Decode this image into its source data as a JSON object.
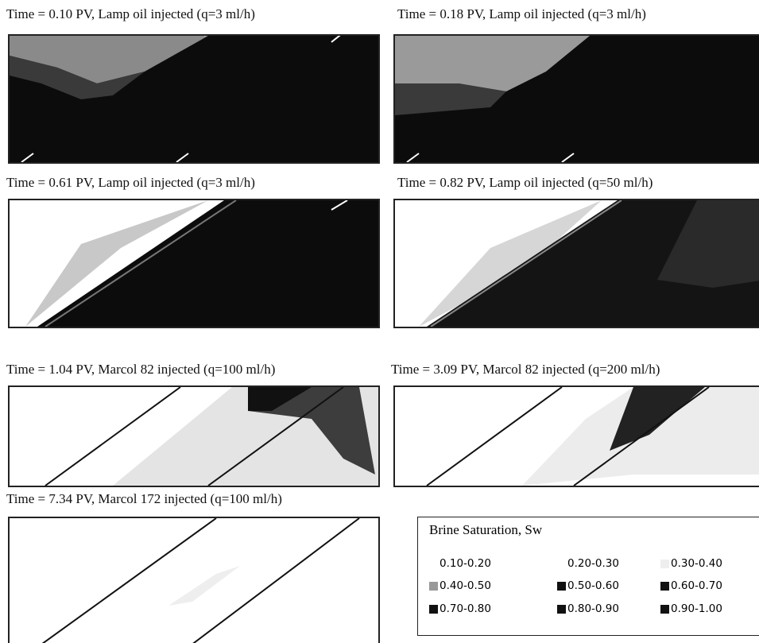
{
  "panels": [
    {
      "title": "Time = 0.10 PV, Lamp oil injected (q=3 ml/h)"
    },
    {
      "title": "Time = 0.18 PV, Lamp oil injected (q=3 ml/h)"
    },
    {
      "title": "Time = 0.61 PV, Lamp oil injected (q=3 ml/h)"
    },
    {
      "title": "Time = 0.82 PV, Lamp oil injected (q=50 ml/h)"
    },
    {
      "title": "Time = 1.04 PV, Marcol 82  injected (q=100 ml/h)"
    },
    {
      "title": "Time = 3.09 PV, Marcol 82 injected (q=200 ml/h)"
    },
    {
      "title": "Time = 7.34 PV,  Marcol 172 injected (q=100 ml/h)"
    }
  ],
  "legend": {
    "title": "Brine Saturation, Sw",
    "items": [
      {
        "label": "0.10-0.20",
        "color": "#ffffff"
      },
      {
        "label": "0.20-0.30",
        "color": "#ffffff"
      },
      {
        "label": "0.30-0.40",
        "color": "#eeeeee"
      },
      {
        "label": "0.40-0.50",
        "color": "#999999"
      },
      {
        "label": "0.50-0.60",
        "color": "#111111"
      },
      {
        "label": "0.60-0.70",
        "color": "#111111"
      },
      {
        "label": "0.70-0.80",
        "color": "#111111"
      },
      {
        "label": "0.80-0.90",
        "color": "#111111"
      },
      {
        "label": "0.90-1.00",
        "color": "#111111"
      }
    ]
  }
}
